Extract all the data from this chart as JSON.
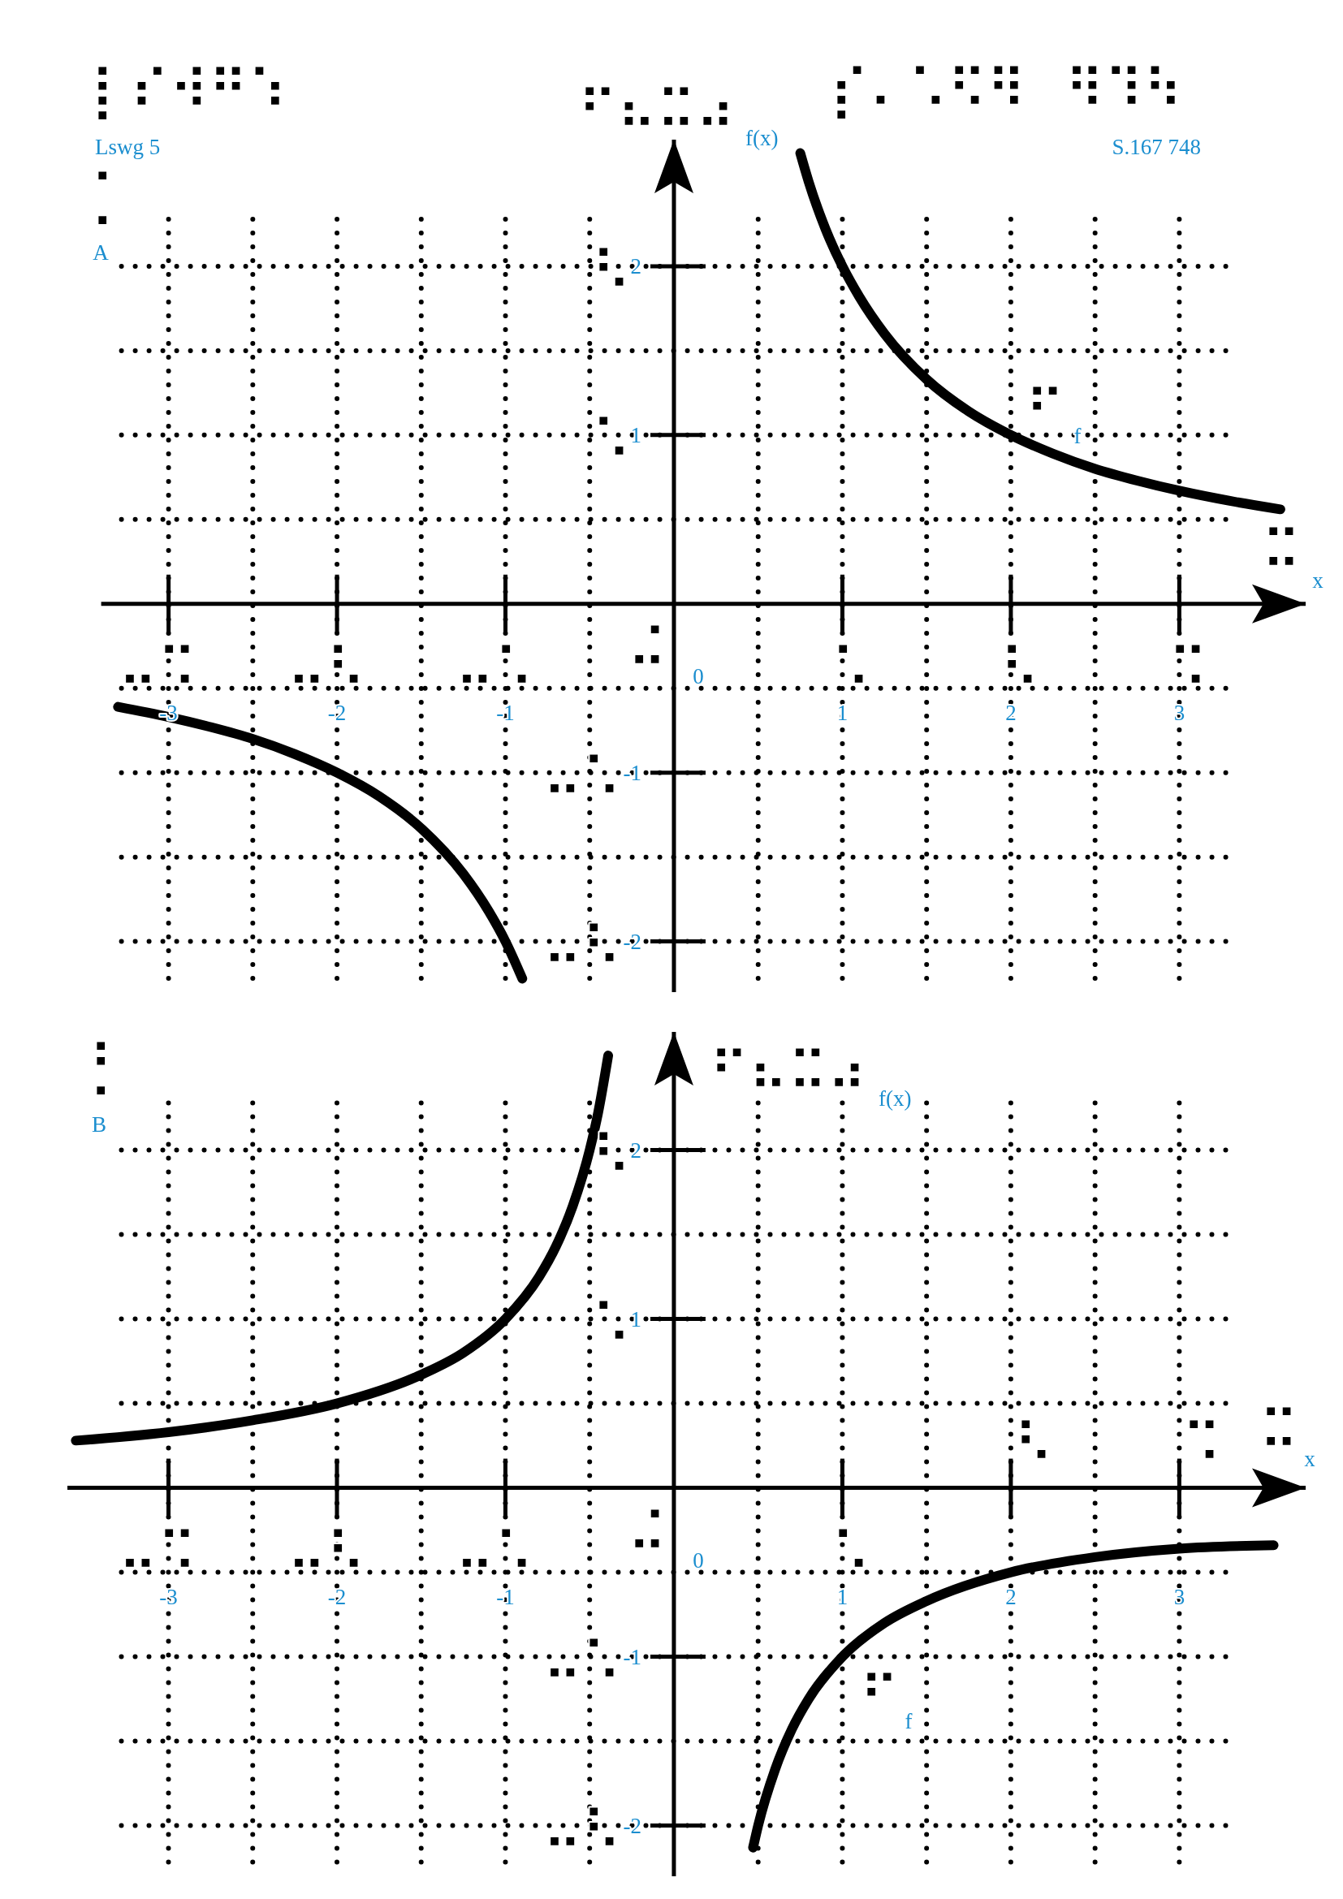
{
  "chart_data": [
    {
      "type": "line",
      "title": "A",
      "xlabel": "x",
      "ylabel": "f(x)",
      "xlim": [
        -3.4,
        3.75
      ],
      "ylim": [
        -2.3,
        2.75
      ],
      "xticks": [
        -3,
        {
          "value": -2.5,
          "label": null
        },
        -2,
        {
          "value": -1.5,
          "label": null
        },
        -1,
        {
          "value": -0.5,
          "label": null
        },
        {
          "value": 0.5,
          "label": null
        },
        1,
        {
          "value": 1.5,
          "label": null
        },
        2,
        {
          "value": 2.5,
          "label": null
        },
        3
      ],
      "yticks": [
        -2,
        {
          "value": -1.5,
          "label": null
        },
        -1,
        {
          "value": -0.5,
          "label": null
        },
        {
          "value": 0.5,
          "label": null
        },
        1,
        {
          "value": 1.5,
          "label": null
        },
        2
      ],
      "grid": true,
      "series": [
        {
          "name": "f",
          "color": "#000000",
          "x": [
            -3.3,
            -3,
            -2.75,
            -2.5,
            -2.25,
            -2,
            -1.75,
            -1.5,
            -1.25,
            -1.1,
            -1,
            -0.9,
            0,
            0.75,
            0.8,
            0.9,
            1,
            1.1,
            1.25,
            1.5,
            1.75,
            2,
            2.25,
            2.5,
            2.75,
            3,
            3.3,
            3.6
          ],
          "values": [
            -0.61,
            -0.67,
            -0.73,
            -0.8,
            -0.89,
            -1,
            -1.14,
            -1.33,
            -1.6,
            -1.82,
            -2,
            -2.22,
            null,
            2.67,
            2.5,
            2.22,
            2,
            1.82,
            1.6,
            1.33,
            1.14,
            1,
            0.89,
            0.8,
            0.73,
            0.67,
            0.61,
            0.56
          ]
        }
      ],
      "annotations": [
        "Lswg 5",
        "⡇⠎⠺⠛⠱",
        "S.167 748",
        "⡎⠄⠡⠫⠻ ⠻⠹⠳",
        "⡁",
        "⠋⠦⠭⠴",
        "⠭",
        "⠋",
        "0",
        "⠤⠩",
        "⠤⠣",
        "⠤⠡",
        "⠬",
        "⠡",
        "⠣",
        "⠩",
        "⠣",
        "⠡",
        "⠤⠡",
        "⠤⠣"
      ]
    },
    {
      "type": "line",
      "title": "B",
      "xlabel": "x",
      "ylabel": "f(x)",
      "xlim": [
        -3.6,
        3.75
      ],
      "ylim": [
        -2.3,
        2.7
      ],
      "xticks": [
        -3,
        {
          "value": -2.5,
          "label": null
        },
        -2,
        {
          "value": -1.5,
          "label": null
        },
        -1,
        {
          "value": -0.5,
          "label": null
        },
        {
          "value": 0.5,
          "label": null
        },
        1,
        {
          "value": 1.5,
          "label": null
        },
        2,
        {
          "value": 2.5,
          "label": null
        },
        3
      ],
      "yticks": [
        -2,
        {
          "value": -1.5,
          "label": null
        },
        -1,
        {
          "value": -0.5,
          "label": null
        },
        {
          "value": 0.5,
          "label": null
        },
        1,
        {
          "value": 1.5,
          "label": null
        },
        2
      ],
      "grid": true,
      "series": [
        {
          "name": "f",
          "color": "#000000",
          "x": [
            -3.55,
            -3,
            -2.5,
            -2,
            -1.5,
            -1.25,
            -1,
            -0.8,
            -0.7,
            -0.6,
            -0.5,
            -0.45,
            -0.39,
            0,
            0.47,
            0.5,
            0.6,
            0.7,
            0.8,
            1,
            1.25,
            1.5,
            2,
            2.5,
            3,
            3.56
          ],
          "values": [
            0.28,
            0.33,
            0.4,
            0.5,
            0.67,
            0.8,
            1,
            1.25,
            1.43,
            1.67,
            2,
            2.22,
            2.56,
            null,
            -2.13,
            -2,
            -1.67,
            -1.43,
            -1.25,
            -1,
            -0.8,
            -0.67,
            -0.5,
            -0.41,
            -0.36,
            -0.34
          ]
        }
      ],
      "annotations": [
        "⡃",
        "⠋⠦⠭⠴",
        "⠭",
        "⠋",
        "0",
        "⠤⠩",
        "⠤⠣",
        "⠤⠡",
        "⠬",
        "⠡",
        "⠣",
        "⠩",
        "⠣",
        "⠡",
        "⠤⠡",
        "⠤⠣"
      ]
    }
  ]
}
